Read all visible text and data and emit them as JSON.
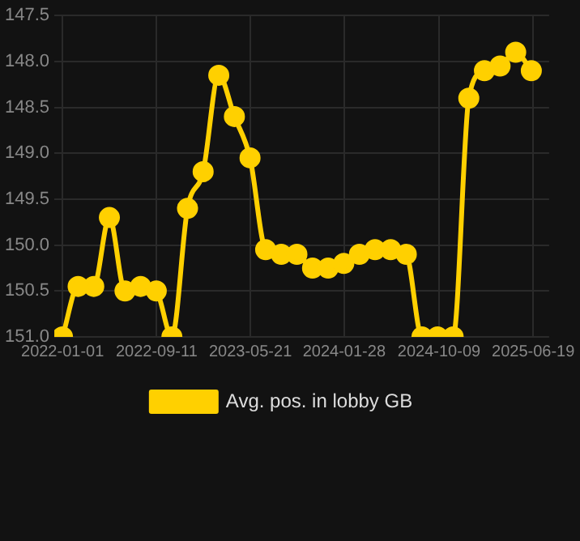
{
  "chart_data": {
    "type": "line",
    "x": [
      "2022-01-01",
      "2022-02-12",
      "2022-03-26",
      "2022-05-07",
      "2022-06-18",
      "2022-07-30",
      "2022-09-10",
      "2022-10-22",
      "2022-12-03",
      "2023-01-14",
      "2023-02-25",
      "2023-04-08",
      "2023-05-20",
      "2023-07-01",
      "2023-08-12",
      "2023-09-23",
      "2023-11-04",
      "2023-12-16",
      "2024-01-27",
      "2024-03-09",
      "2024-04-20",
      "2024-06-01",
      "2024-07-13",
      "2024-08-24",
      "2024-10-05",
      "2024-11-16",
      "2024-12-28",
      "2025-02-08",
      "2025-03-22",
      "2025-05-03",
      "2025-06-14"
    ],
    "series": [
      {
        "name": "Avg. pos. in lobby GB",
        "color": "#ffd000",
        "values": [
          151.0,
          150.45,
          150.45,
          149.7,
          150.5,
          150.45,
          150.5,
          151.0,
          149.6,
          149.2,
          148.15,
          148.6,
          149.05,
          150.05,
          150.1,
          150.1,
          150.25,
          150.25,
          150.2,
          150.1,
          150.05,
          150.05,
          150.1,
          151.0,
          151.0,
          151.0,
          148.4,
          148.1,
          148.05,
          147.9,
          148.1
        ]
      }
    ],
    "ylim": [
      151.0,
      147.5
    ],
    "yticks": [
      147.5,
      {
        "value": 148,
        "label": "148.0"
      },
      148.5,
      {
        "value": 149,
        "label": "149.0"
      },
      149.5,
      {
        "value": 150,
        "label": "150.0"
      },
      150.5,
      {
        "value": 151,
        "label": "151.0"
      }
    ],
    "xlim": [
      "2021-12-10",
      "2025-08-01"
    ],
    "xticks": [
      "2022-01-01",
      "2022-09-11",
      "2023-05-21",
      "2024-01-28",
      "2024-10-09",
      "2025-06-19"
    ],
    "grid": true,
    "legend": "bottom",
    "marker": "circle",
    "line_style": "solid"
  }
}
